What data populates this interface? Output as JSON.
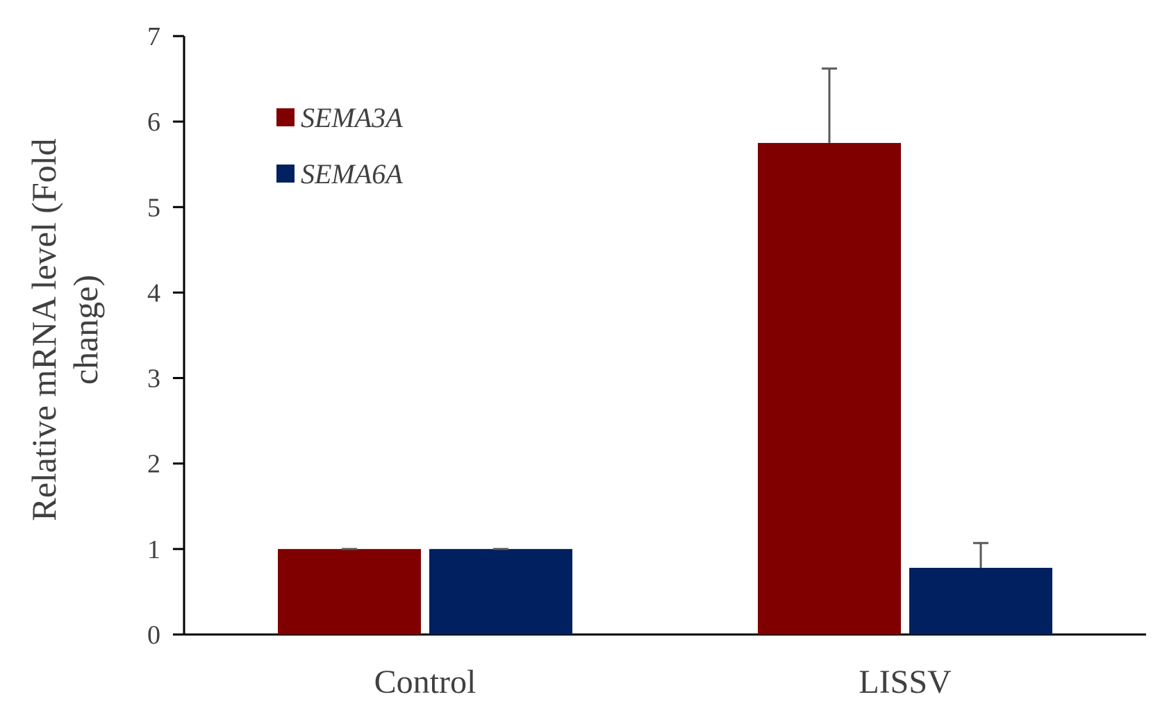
{
  "chart_data": {
    "type": "bar",
    "categories": [
      "Control",
      "LISSV"
    ],
    "series": [
      {
        "name": "SEMA3A",
        "color": "#800000",
        "values": [
          1.0,
          5.75
        ],
        "errors": [
          0.0,
          0.87
        ]
      },
      {
        "name": "SEMA6A",
        "color": "#002060",
        "values": [
          1.0,
          0.78
        ],
        "errors": [
          0.0,
          0.29
        ]
      }
    ],
    "title": "",
    "xlabel": "",
    "ylabel": "Relative mRNA level (Fold change)",
    "ylabel_lines": [
      "Relative mRNA level (Fold",
      "change)"
    ],
    "ylim": [
      0,
      7
    ],
    "yticks": [
      "0",
      "1",
      "2",
      "3",
      "4",
      "5",
      "6",
      "7"
    ],
    "grid": false,
    "legend_position": "top-left"
  }
}
